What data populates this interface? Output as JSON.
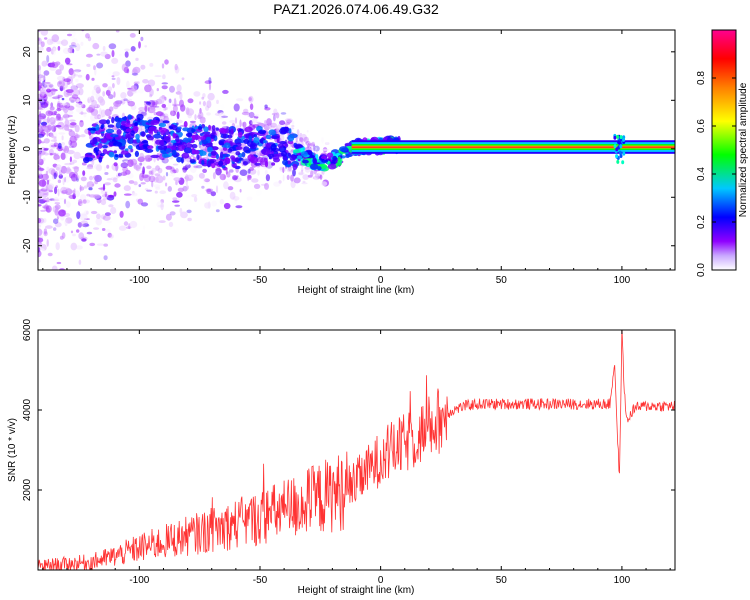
{
  "chart_data": [
    {
      "type": "heatmap",
      "title": "PAZ1.2026.074.06.49.G32",
      "xlabel": "Height of straight line (km)",
      "ylabel": "Frequency (Hz)",
      "xlim": [
        -142,
        122
      ],
      "ylim": [
        -25,
        24.5
      ],
      "x_ticks": [
        -100,
        -50,
        0,
        50,
        100
      ],
      "y_ticks": [
        -20,
        -10,
        0,
        10,
        20
      ],
      "colorbar": {
        "label": "Normalized spectral amplitude",
        "range": [
          0,
          1
        ],
        "ticks": [
          0.0,
          0.2,
          0.4,
          0.6,
          0.8
        ],
        "colors": [
          "#ffffff",
          "#8f00ff",
          "#0000ff",
          "#00ffff",
          "#00ff00",
          "#ffff00",
          "#ff8000",
          "#ff0000",
          "#ff0090"
        ]
      },
      "ridge_points": [
        {
          "x": -120,
          "f": 1.5
        },
        {
          "x": -100,
          "f": 3.0
        },
        {
          "x": -80,
          "f": 1.0
        },
        {
          "x": -60,
          "f": 0.0
        },
        {
          "x": -40,
          "f": 1.0
        },
        {
          "x": -30,
          "f": -2.0
        },
        {
          "x": -25,
          "f": -3.0
        },
        {
          "x": -18,
          "f": -2.0
        },
        {
          "x": -12,
          "f": 0.0
        },
        {
          "x": -5,
          "f": 0.5
        },
        {
          "x": 0,
          "f": 0.5
        },
        {
          "x": 5,
          "f": 1.0
        },
        {
          "x": 10,
          "f": 0.5
        },
        {
          "x": 120,
          "f": 0.0
        }
      ],
      "notes": "Steady carrier ridge at ~0 Hz for heights above ~-10 km; scattered low-amplitude noise below -50 km; brief disturbance near 100 km."
    },
    {
      "type": "line",
      "xlabel": "Height of straight line (km)",
      "ylabel": "SNR (10 * v/v)",
      "xlim": [
        -142,
        122
      ],
      "ylim": [
        0,
        6000
      ],
      "x_ticks": [
        -100,
        -50,
        0,
        50,
        100
      ],
      "y_ticks": [
        2000,
        4000,
        6000
      ],
      "line_color": "#ff3333",
      "series": [
        {
          "name": "SNR",
          "x": [
            -142,
            -130,
            -120,
            -110,
            -100,
            -90,
            -80,
            -70,
            -60,
            -50,
            -40,
            -30,
            -20,
            -15,
            -12,
            -10,
            -5,
            0,
            5,
            10,
            15,
            20,
            25,
            30,
            35,
            40,
            50,
            60,
            70,
            80,
            90,
            95,
            97,
            98,
            99,
            100,
            101,
            102,
            105,
            110,
            122
          ],
          "values": [
            100,
            150,
            200,
            350,
            550,
            700,
            850,
            1000,
            1150,
            1300,
            1500,
            1700,
            1900,
            2000,
            2100,
            2200,
            2500,
            2800,
            3000,
            3150,
            3350,
            3550,
            3800,
            4000,
            4100,
            4150,
            4150,
            4150,
            4150,
            4150,
            4150,
            4150,
            5200,
            3500,
            2300,
            6000,
            4500,
            3700,
            4050,
            4100,
            4100
          ]
        }
      ]
    }
  ]
}
